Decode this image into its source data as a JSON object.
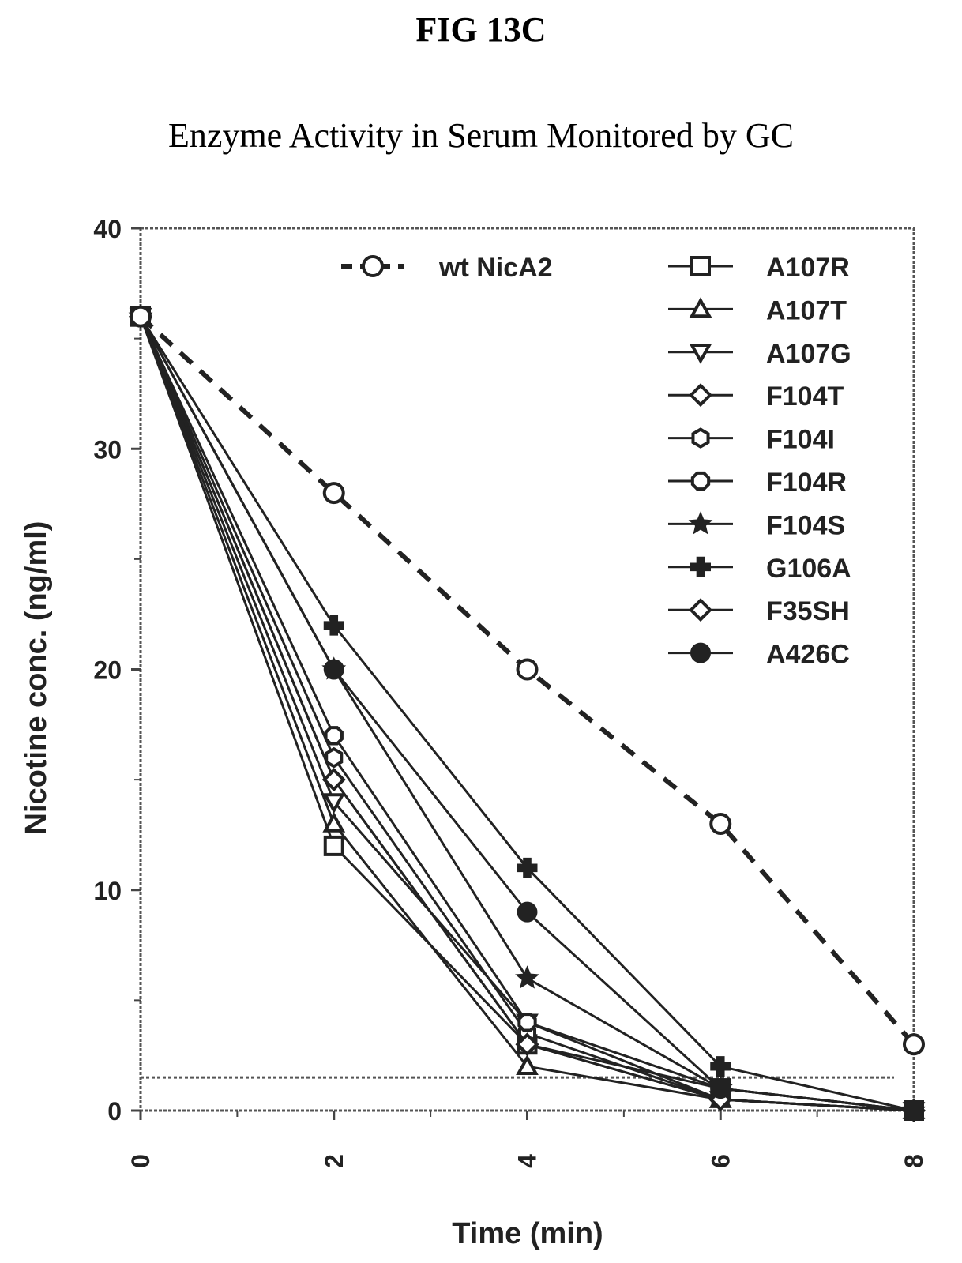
{
  "figure_label": "FIG 13C",
  "chart_data": {
    "type": "line",
    "title": "Enzyme Activity in Serum Monitored by GC",
    "xlabel": "Time (min)",
    "ylabel": "Nicotine conc. (ng/ml)",
    "xlim": [
      0,
      8
    ],
    "ylim": [
      0,
      40
    ],
    "x_ticks": [
      0,
      2,
      4,
      6,
      8
    ],
    "y_ticks": [
      0,
      10,
      20,
      30,
      40
    ],
    "x_tick_labels": [
      "0",
      "2",
      "4",
      "6",
      "8"
    ],
    "y_tick_labels": [
      "0",
      "10",
      "20",
      "30",
      "40"
    ],
    "reference_line_y": 1.5,
    "legend_position": "top",
    "grid": false,
    "series": [
      {
        "name": "wt NicA2",
        "marker": "circle-open",
        "dashed": true,
        "x": [
          0,
          2,
          4,
          6,
          8
        ],
        "y": [
          36,
          28,
          20,
          13,
          3
        ]
      },
      {
        "name": "A107R",
        "marker": "square-open",
        "dashed": false,
        "x": [
          0,
          2,
          4,
          6,
          8
        ],
        "y": [
          36,
          12,
          3,
          1,
          0
        ]
      },
      {
        "name": "A107T",
        "marker": "triangle-up-open",
        "dashed": false,
        "x": [
          0,
          2,
          4,
          6,
          8
        ],
        "y": [
          36,
          13,
          2,
          0.5,
          0
        ]
      },
      {
        "name": "A107G",
        "marker": "triangle-down-open",
        "dashed": false,
        "x": [
          0,
          2,
          4,
          6,
          8
        ],
        "y": [
          36,
          14,
          4,
          0.5,
          0
        ]
      },
      {
        "name": "F104T",
        "marker": "diamond-open",
        "dashed": false,
        "x": [
          0,
          2,
          4,
          6,
          8
        ],
        "y": [
          36,
          15,
          3,
          0.5,
          0
        ]
      },
      {
        "name": "F104I",
        "marker": "hexagon-open",
        "dashed": false,
        "x": [
          0,
          2,
          4,
          6,
          8
        ],
        "y": [
          36,
          16,
          3.5,
          0.5,
          0
        ]
      },
      {
        "name": "F104R",
        "marker": "octagon-open",
        "dashed": false,
        "x": [
          0,
          2,
          4,
          6,
          8
        ],
        "y": [
          36,
          17,
          4,
          1,
          0
        ]
      },
      {
        "name": "F104S",
        "marker": "star-filled",
        "dashed": false,
        "x": [
          0,
          2,
          4,
          6,
          8
        ],
        "y": [
          36,
          20,
          6,
          1,
          0
        ]
      },
      {
        "name": "G106A",
        "marker": "cross-filled",
        "dashed": false,
        "x": [
          0,
          2,
          4,
          6,
          8
        ],
        "y": [
          36,
          22,
          11,
          2,
          0
        ]
      },
      {
        "name": "F35SH",
        "marker": "diamond-open",
        "dashed": false,
        "x": [
          0,
          2,
          4,
          6,
          8
        ],
        "y": [
          36,
          15,
          3,
          0.5,
          0
        ]
      },
      {
        "name": "A426C",
        "marker": "circle-filled",
        "dashed": false,
        "x": [
          0,
          2,
          4,
          6,
          8
        ],
        "y": [
          36,
          20,
          9,
          1,
          0
        ]
      }
    ]
  }
}
